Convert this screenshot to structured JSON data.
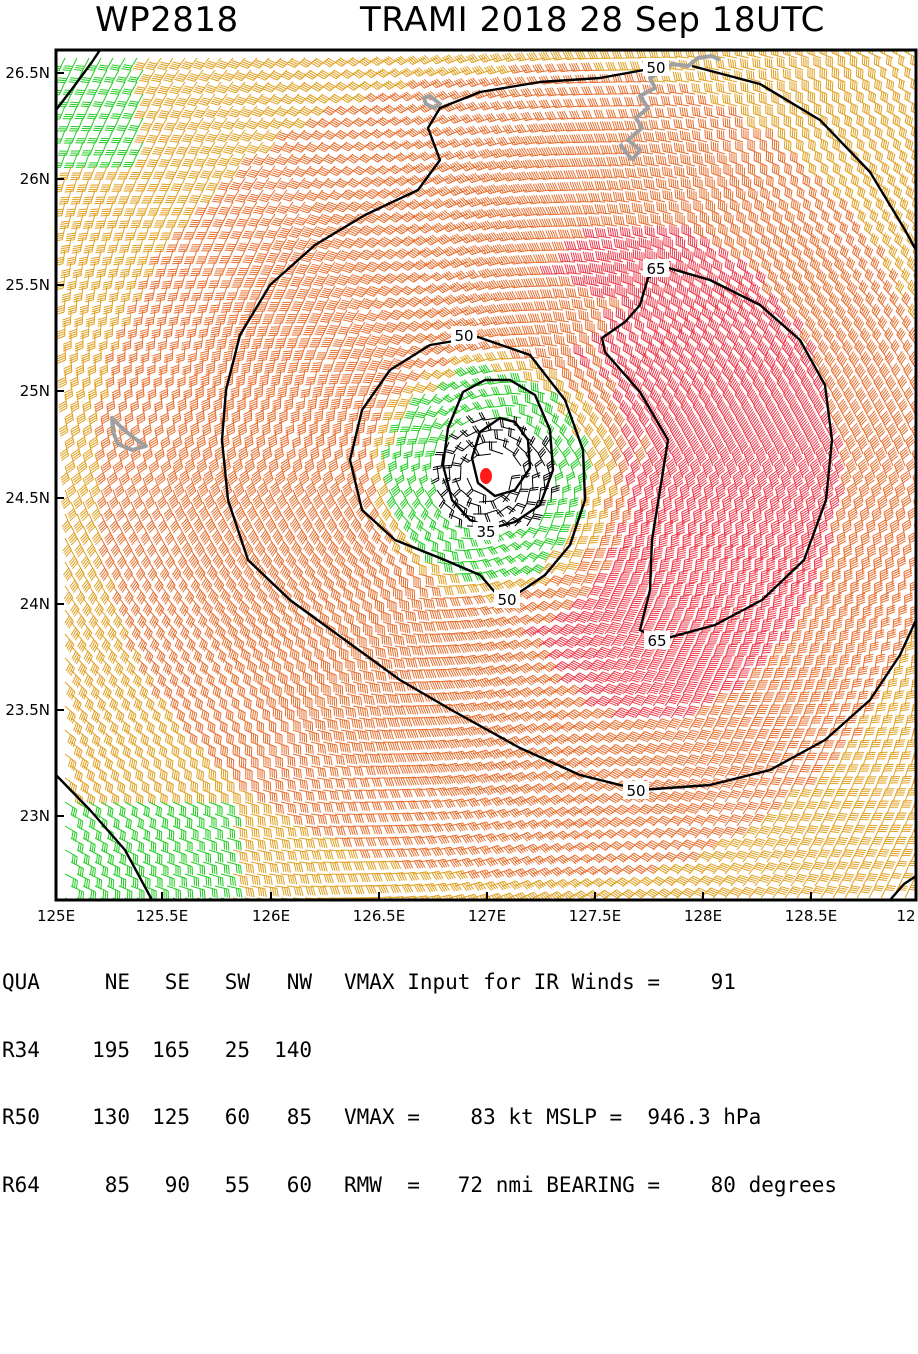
{
  "header": {
    "storm_id": "WP2818",
    "storm_title": "TRAMI 2018 28 Sep 18UTC"
  },
  "map": {
    "lat_labels": [
      "26.5N",
      "26N",
      "25.5N",
      "25N",
      "24.5N",
      "24N",
      "23.5N",
      "23N"
    ],
    "lon_labels": [
      "125E",
      "125.5E",
      "126E",
      "126.5E",
      "127E",
      "127.5E",
      "128E",
      "128.5E",
      "12"
    ],
    "contour_labels": [
      "50",
      "65",
      "50",
      "35",
      "50",
      "65",
      "50"
    ],
    "colors": {
      "calm": "#000000",
      "light": "#22cc22",
      "moderate": "#e0a020",
      "strong": "#e77030",
      "intense": "#ee3a4a",
      "land": "#a0a0a0",
      "center": "#ff1a1a"
    }
  },
  "table": {
    "header": [
      "QUA",
      "NE",
      "SE",
      "SW",
      "NW"
    ],
    "rows": [
      {
        "label": "R34",
        "values": [
          "195",
          "165",
          "25",
          "140"
        ]
      },
      {
        "label": "R50",
        "values": [
          "130",
          "125",
          "60",
          "85"
        ]
      },
      {
        "label": "R64",
        "values": [
          "85",
          "90",
          "55",
          "60"
        ]
      }
    ],
    "info": [
      "VMAX Input for IR Winds =    91",
      "",
      "VMAX =    83 kt MSLP =  946.3 hPa",
      "RMW  =   72 nmi BEARING =    80 degrees"
    ]
  }
}
